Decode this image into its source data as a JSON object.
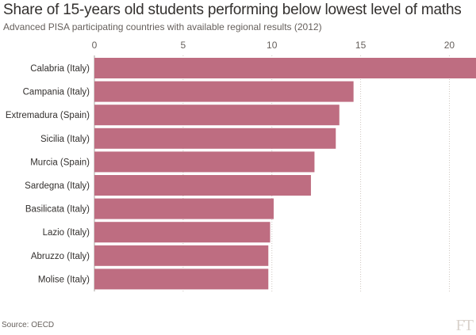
{
  "chart_data": {
    "type": "bar",
    "orientation": "horizontal",
    "title": "Share of 15-years old students performing below lowest level of maths",
    "subtitle": "Advanced PISA participating countries with available regional results (2012)",
    "categories": [
      "Calabria (Italy)",
      "Campania (Italy)",
      "Extremadura (Spain)",
      "Sicilia (Italy)",
      "Murcia (Spain)",
      "Sardegna (Italy)",
      "Basilicata (Italy)",
      "Lazio (Italy)",
      "Abruzzo (Italy)",
      "Molise (Italy)"
    ],
    "values": [
      21.5,
      14.6,
      13.8,
      13.6,
      12.4,
      12.2,
      10.1,
      9.9,
      9.8,
      9.8
    ],
    "xlim": [
      0,
      21.5
    ],
    "xticks": [
      0,
      5,
      10,
      15,
      20
    ],
    "xtick_labels": [
      "0",
      "5",
      "10",
      "15",
      "20"
    ],
    "axis_position": "top",
    "grid": true,
    "bar_color": "#be6d81"
  },
  "footer": {
    "source": "Source: OECD",
    "logo": "FT"
  }
}
